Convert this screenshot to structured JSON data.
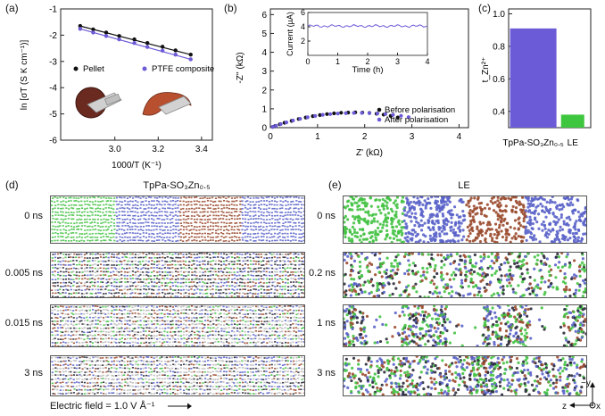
{
  "panels": {
    "a": {
      "label": "(a)",
      "ylabel": "ln [σT (S K cm⁻¹)]",
      "xlabel": "1000/T (K⁻¹)",
      "legend": [
        "Pellet",
        "PTFE composite"
      ],
      "chart_data": {
        "type": "scatter",
        "xlim": [
          2.75,
          3.45
        ],
        "ylim": [
          -6,
          -1
        ],
        "xticks": [
          "3.0",
          "3.2",
          "3.4"
        ],
        "yticks": [
          "-6",
          "-5",
          "-4",
          "-3",
          "-2",
          "-1"
        ],
        "series": [
          {
            "name": "Pellet",
            "color": "#111111",
            "x": [
              2.84,
              2.9,
              2.96,
              3.02,
              3.09,
              3.15,
              3.22,
              3.28,
              3.35
            ],
            "y": [
              -1.65,
              -1.78,
              -1.9,
              -2.03,
              -2.16,
              -2.3,
              -2.44,
              -2.58,
              -2.74
            ]
          },
          {
            "name": "PTFE composite",
            "color": "#6b5bd6",
            "x": [
              2.84,
              2.9,
              2.96,
              3.02,
              3.09,
              3.15,
              3.22,
              3.28,
              3.35
            ],
            "y": [
              -1.76,
              -1.9,
              -2.03,
              -2.16,
              -2.3,
              -2.45,
              -2.59,
              -2.74,
              -2.92
            ]
          }
        ]
      }
    },
    "b": {
      "label": "(b)",
      "ylabel": "-Z'' (kΩ)",
      "xlabel": "Z' (kΩ)",
      "legend": [
        "Before polarisation",
        "After polarisation"
      ],
      "inset": {
        "ylabel": "Current (µA)",
        "xlabel": "Time (h)",
        "xticks": [
          "0",
          "1",
          "2",
          "3",
          "4"
        ],
        "yticks": [
          "2",
          "4",
          "6"
        ]
      },
      "chart_data": {
        "type": "scatter",
        "xlim": [
          0,
          4.2
        ],
        "ylim": [
          0,
          6.3
        ],
        "xticks": [
          "0",
          "1",
          "2",
          "3",
          "4"
        ],
        "yticks": [
          "0",
          "1",
          "2",
          "3",
          "4",
          "5",
          "6"
        ],
        "series": [
          {
            "name": "Before polarisation",
            "color": "#111111",
            "x": [
              0.05,
              0.1,
              0.2,
              0.3,
              0.45,
              0.6,
              0.75,
              0.9,
              1.05,
              1.2,
              1.35,
              1.5,
              1.65,
              1.8,
              1.95,
              2.1,
              2.25,
              2.4,
              2.55,
              2.7
            ],
            "y": [
              0.04,
              0.09,
              0.18,
              0.26,
              0.36,
              0.46,
              0.54,
              0.61,
              0.67,
              0.72,
              0.76,
              0.79,
              0.8,
              0.81,
              0.8,
              0.78,
              0.74,
              0.69,
              0.62,
              0.54
            ]
          },
          {
            "name": "After polarisation",
            "color": "#6b5bd6",
            "x": [
              0.05,
              0.12,
              0.22,
              0.34,
              0.48,
              0.63,
              0.79,
              0.95,
              1.11,
              1.27,
              1.43,
              1.6,
              1.77,
              1.94,
              2.1,
              2.27,
              2.44,
              2.6,
              2.77,
              2.93
            ],
            "y": [
              0.04,
              0.1,
              0.19,
              0.28,
              0.38,
              0.47,
              0.55,
              0.62,
              0.68,
              0.72,
              0.75,
              0.77,
              0.78,
              0.78,
              0.77,
              0.75,
              0.72,
              0.68,
              0.63,
              0.56
            ]
          }
        ],
        "inset_series": {
          "name": "Current",
          "color": "#6b5bd6",
          "xlim": [
            0,
            4
          ],
          "ylim": [
            0,
            6
          ],
          "level": 4.1
        }
      }
    },
    "c": {
      "label": "(c)",
      "ylabel": "t_Zn²⁺",
      "chart_data": {
        "type": "bar",
        "categories": [
          "TpPa-SO₃Zn₀.₅",
          "LE"
        ],
        "values": [
          0.91,
          0.38
        ],
        "colors": [
          "#6b5bd6",
          "#3fc63f"
        ],
        "ylim": [
          0.3,
          1.03
        ],
        "yticks": [
          "0.4",
          "0.6",
          "0.8",
          "1.0"
        ]
      }
    },
    "d": {
      "label": "(d)",
      "title": "TpPa-SO₃Zn₀.₅",
      "times": [
        "0 ns",
        "0.005 ns",
        "0.015 ns",
        "3 ns"
      ],
      "efield": "Electric field = 1.0 V Å⁻¹",
      "colors": {
        "green": "#44c244",
        "blue": "#5a63c9",
        "brown": "#9a4a2e",
        "dark": "#2a2a3a",
        "grey": "#b9b9b9"
      }
    },
    "e": {
      "label": "(e)",
      "title": "LE",
      "times": [
        "0 ns",
        "0.2 ns",
        "1 ns",
        "3 ns"
      ],
      "axes": {
        "y": "−y",
        "z": "z",
        "x": "x"
      }
    }
  }
}
